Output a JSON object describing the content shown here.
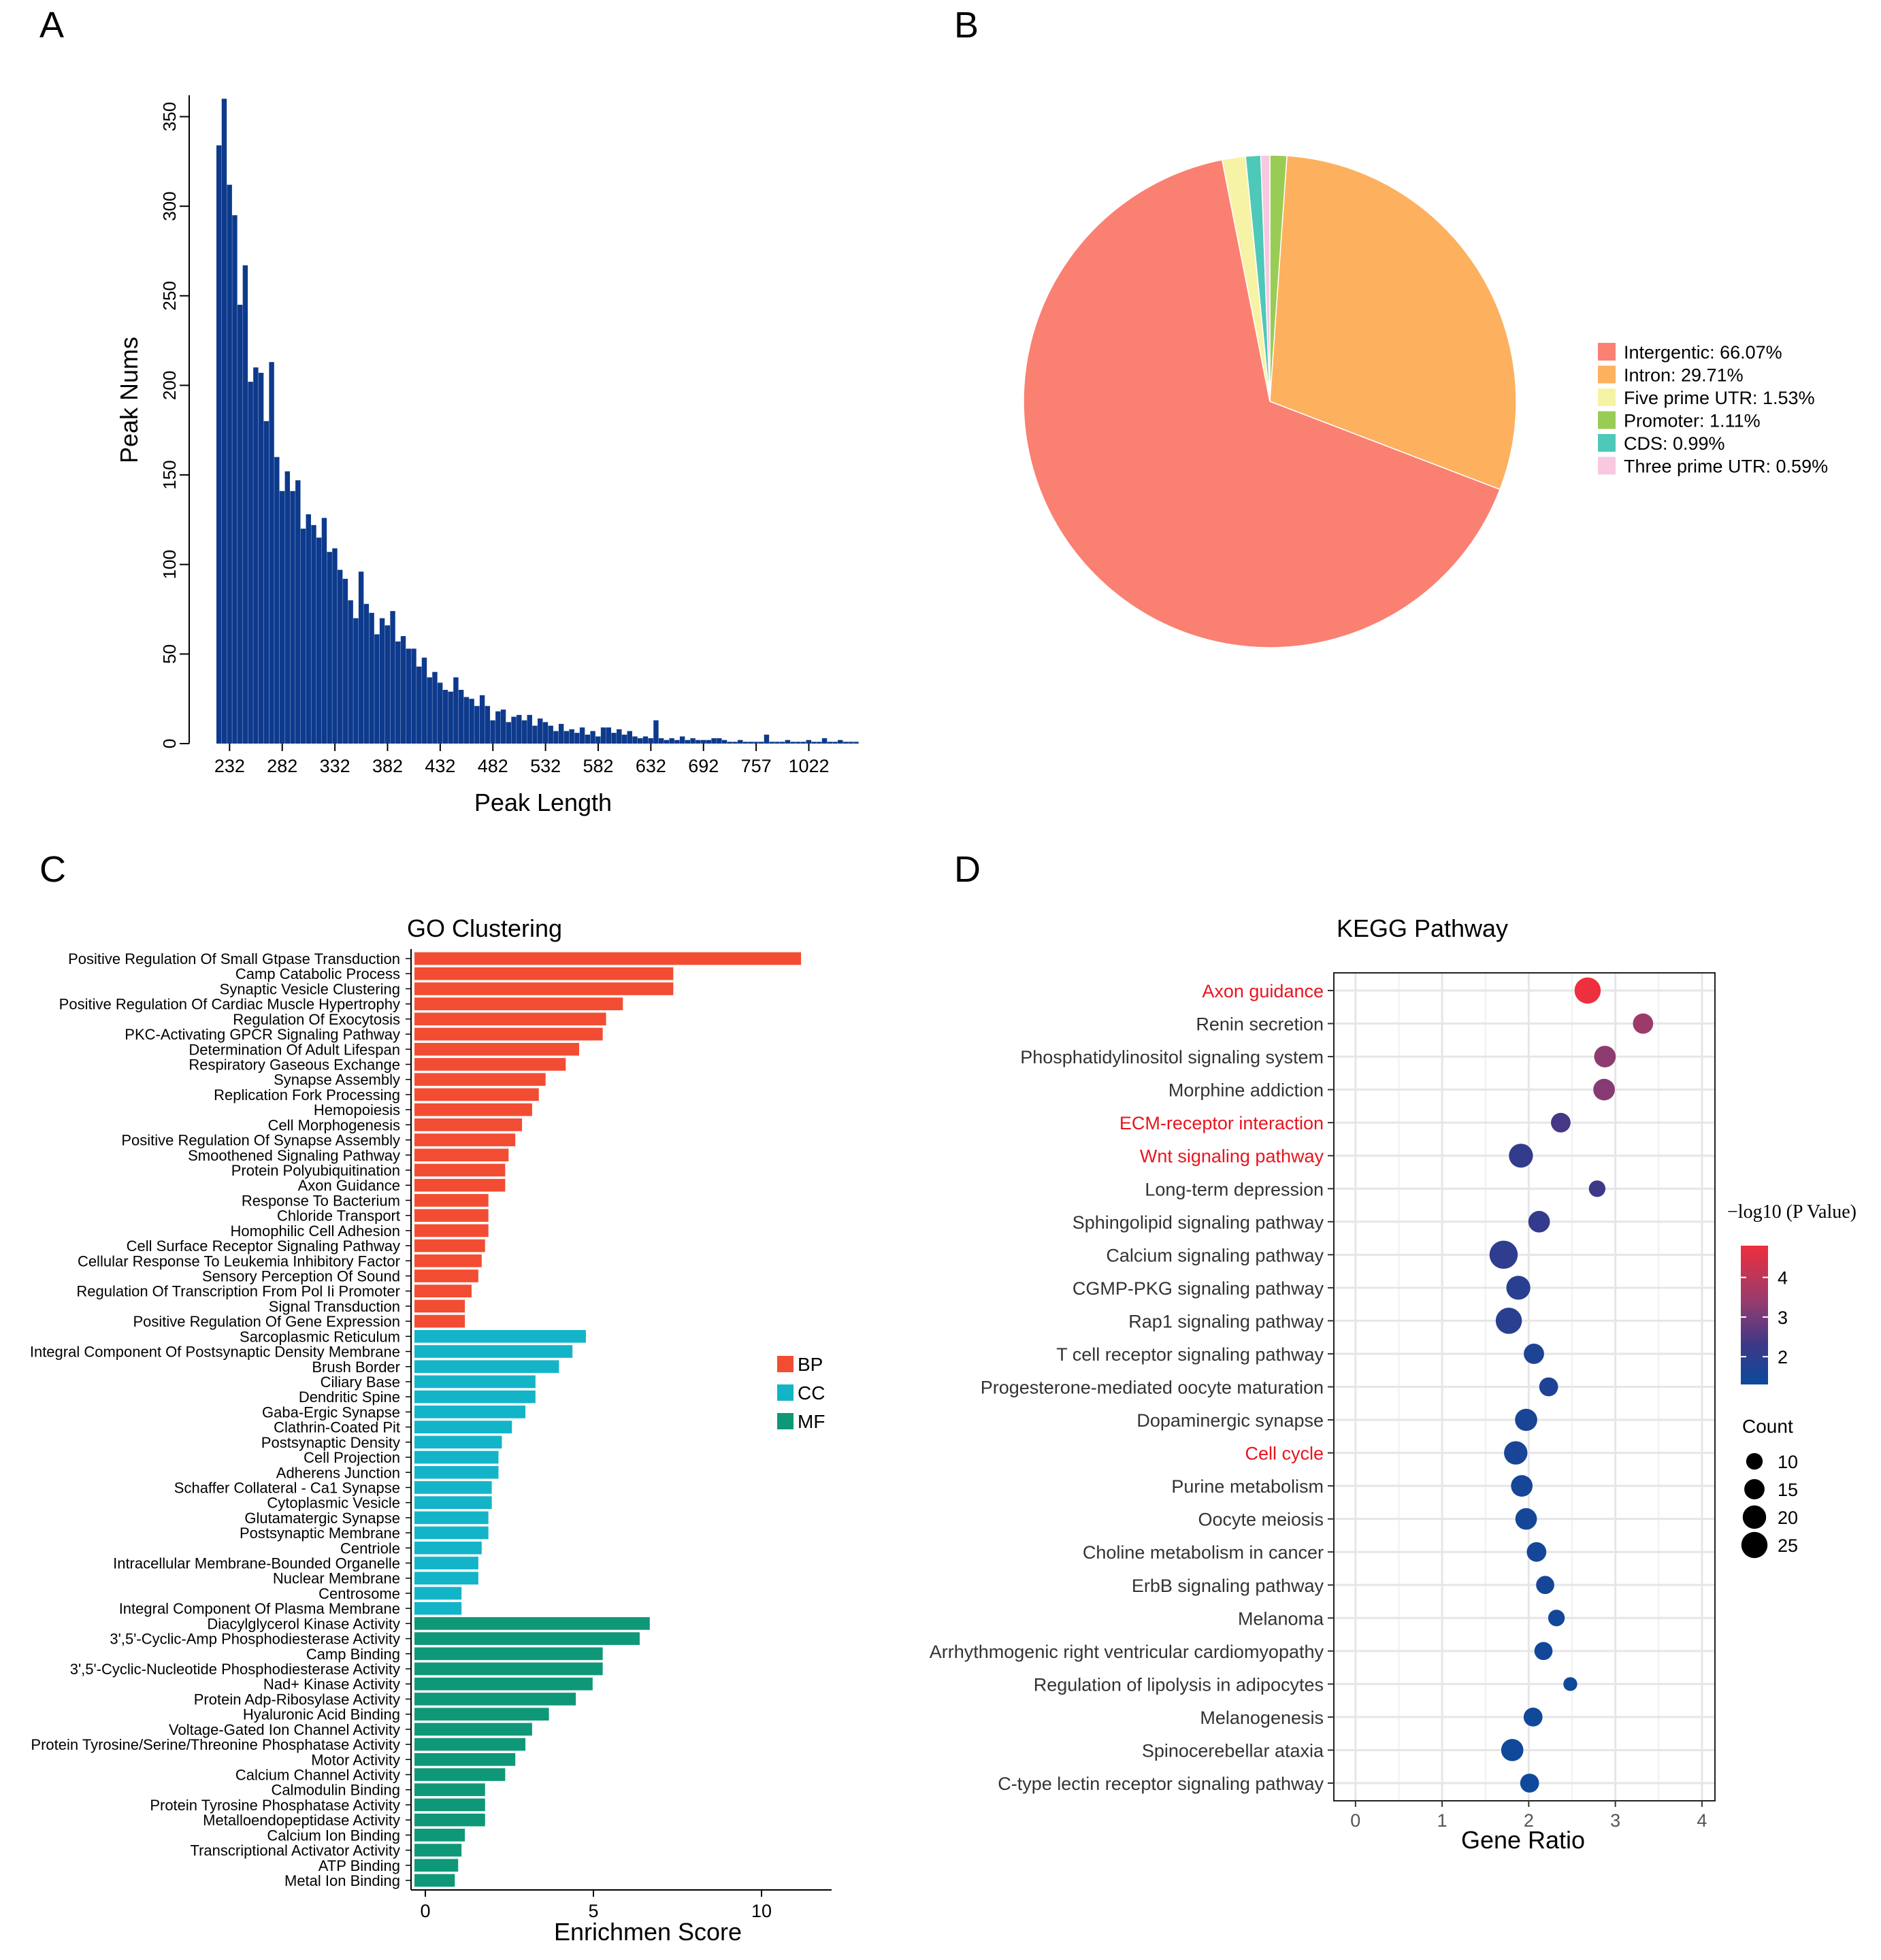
{
  "chart_data": [
    {
      "panel": "A",
      "type": "bar",
      "title": "",
      "xlabel": "Peak Length",
      "ylabel": "Peak Nums",
      "ylim": [
        0,
        365
      ],
      "yticks": [
        "0",
        "50",
        "100",
        "150",
        "200",
        "250",
        "300",
        "350"
      ],
      "xtick_labels": [
        "232",
        "282",
        "332",
        "382",
        "432",
        "482",
        "532",
        "582",
        "632",
        "692",
        "757",
        "1022"
      ],
      "xtick_bins": [
        2,
        12,
        22,
        32,
        42,
        52,
        62,
        72,
        82,
        92,
        102,
        112
      ],
      "color": "#0d3a8c",
      "values": [
        334,
        360,
        312,
        295,
        245,
        267,
        202,
        210,
        207,
        180,
        213,
        160,
        141,
        152,
        141,
        147,
        120,
        128,
        122,
        115,
        126,
        107,
        109,
        97,
        92,
        80,
        70,
        96,
        78,
        73,
        61,
        70,
        66,
        74,
        57,
        60,
        53,
        53,
        43,
        48,
        37,
        40,
        34,
        30,
        29,
        37,
        30,
        26,
        25,
        21,
        27,
        21,
        13,
        18,
        19,
        12,
        15,
        16,
        13,
        16,
        10,
        14,
        12,
        10,
        7,
        11,
        7,
        8,
        6,
        9,
        5,
        7,
        4,
        9,
        9,
        6,
        8,
        5,
        7,
        4,
        3,
        4,
        3,
        13,
        3,
        2,
        3,
        2,
        4,
        2,
        3,
        2,
        2,
        2,
        3,
        3,
        2,
        1,
        1,
        2,
        1,
        1,
        1,
        1,
        5,
        1,
        1,
        1,
        2,
        1,
        1,
        1,
        2,
        1,
        1,
        3,
        1,
        1,
        2,
        1,
        1,
        1
      ]
    },
    {
      "panel": "B",
      "type": "pie",
      "title": "",
      "slices": [
        {
          "label": "Intergentic: 66.07%",
          "name": "Intergentic",
          "value": 66.07,
          "color": "#fa8072"
        },
        {
          "label": "Intron: 29.71%",
          "name": "Intron",
          "value": 29.71,
          "color": "#fdb05e"
        },
        {
          "label": "Five prime UTR: 1.53%",
          "name": "Five prime UTR",
          "value": 1.53,
          "color": "#f7f3a6"
        },
        {
          "label": "Promoter: 1.11%",
          "name": "Promoter",
          "value": 1.11,
          "color": "#99cc55"
        },
        {
          "label": "CDS: 0.99%",
          "name": "CDS",
          "value": 0.99,
          "color": "#4ec8b8"
        },
        {
          "label": "Three prime UTR: 0.59%",
          "name": "Three prime UTR",
          "value": 0.59,
          "color": "#f7c8e0"
        }
      ],
      "slice_order_clockwise_from_top": [
        "Promoter",
        "Intron",
        "Intergentic",
        "Five prime UTR",
        "CDS",
        "Three prime UTR"
      ]
    },
    {
      "panel": "C",
      "type": "bar",
      "orientation": "horizontal",
      "title": "GO Clustering",
      "xlabel": "Enrichmen Score",
      "xlim": [
        -0.6,
        12
      ],
      "xticks": [
        "0",
        "5",
        "10"
      ],
      "legend": [
        {
          "label": "BP",
          "color": "#f24d33"
        },
        {
          "label": "CC",
          "color": "#14b4c8"
        },
        {
          "label": "MF",
          "color": "#0e9878"
        }
      ],
      "categories": [
        "Positive Regulation Of Small Gtpase Transduction",
        "Camp Catabolic Process",
        "Synaptic Vesicle Clustering",
        "Positive Regulation Of Cardiac Muscle Hypertrophy",
        "Regulation Of Exocytosis",
        "PKC-Activating GPCR Signaling Pathway",
        "Determination Of Adult Lifespan",
        "Respiratory Gaseous Exchange",
        "Synapse Assembly",
        "Replication Fork Processing",
        "Hemopoiesis",
        "Cell Morphogenesis",
        "Positive Regulation Of Synapse Assembly",
        "Smoothened Signaling Pathway",
        "Protein Polyubiquitination",
        "Axon Guidance",
        "Response To Bacterium",
        "Chloride Transport",
        "Homophilic Cell Adhesion",
        "Cell Surface Receptor Signaling Pathway",
        "Cellular Response To Leukemia Inhibitory Factor",
        "Sensory Perception Of Sound",
        "Regulation Of Transcription From Pol Ii Promoter",
        "Signal Transduction",
        "Positive Regulation Of Gene Expression",
        "Sarcoplasmic Reticulum",
        "Integral Component Of Postsynaptic Density Membrane",
        "Brush Border",
        "Ciliary Base",
        "Dendritic Spine",
        "Gaba-Ergic Synapse",
        "Clathrin-Coated Pit",
        "Postsynaptic Density",
        "Cell Projection",
        "Adherens Junction",
        "Schaffer Collateral - Ca1 Synapse",
        "Cytoplasmic Vesicle",
        "Glutamatergic Synapse",
        "Postsynaptic Membrane",
        "Centriole",
        "Intracellular Membrane-Bounded Organelle",
        "Nuclear Membrane",
        "Centrosome",
        "Integral Component Of Plasma Membrane",
        "Diacylglycerol Kinase Activity",
        "3',5'-Cyclic-Amp Phosphodiesterase Activity",
        "Camp Binding",
        "3',5'-Cyclic-Nucleotide Phosphodiesterase Activity",
        "Nad+ Kinase Activity",
        "Protein Adp-Ribosylase Activity",
        "Hyaluronic Acid Binding",
        "Voltage-Gated Ion Channel Activity",
        "Protein Tyrosine/Serine/Threonine Phosphatase Activity",
        "Motor Activity",
        "Calcium Channel Activity",
        "Calmodulin Binding",
        "Protein Tyrosine Phosphatase Activity",
        "Metalloendopeptidase Activity",
        "Calcium Ion Binding",
        "Transcriptional Activator Activity",
        "ATP Binding",
        "Metal Ion Binding"
      ],
      "groups": [
        "BP",
        "BP",
        "BP",
        "BP",
        "BP",
        "BP",
        "BP",
        "BP",
        "BP",
        "BP",
        "BP",
        "BP",
        "BP",
        "BP",
        "BP",
        "BP",
        "BP",
        "BP",
        "BP",
        "BP",
        "BP",
        "BP",
        "BP",
        "BP",
        "BP",
        "CC",
        "CC",
        "CC",
        "CC",
        "CC",
        "CC",
        "CC",
        "CC",
        "CC",
        "CC",
        "CC",
        "CC",
        "CC",
        "CC",
        "CC",
        "CC",
        "CC",
        "CC",
        "CC",
        "MF",
        "MF",
        "MF",
        "MF",
        "MF",
        "MF",
        "MF",
        "MF",
        "MF",
        "MF",
        "MF",
        "MF",
        "MF",
        "MF",
        "MF",
        "MF",
        "MF",
        "MF"
      ],
      "values": [
        11.5,
        7.7,
        7.7,
        6.2,
        5.7,
        5.6,
        4.9,
        4.5,
        3.9,
        3.7,
        3.5,
        3.2,
        3.0,
        2.8,
        2.7,
        2.7,
        2.2,
        2.2,
        2.2,
        2.1,
        2.0,
        1.9,
        1.7,
        1.5,
        1.5,
        5.1,
        4.7,
        4.3,
        3.6,
        3.6,
        3.3,
        2.9,
        2.6,
        2.5,
        2.5,
        2.3,
        2.3,
        2.2,
        2.2,
        2.0,
        1.9,
        1.9,
        1.4,
        1.4,
        7.0,
        6.7,
        5.6,
        5.6,
        5.3,
        4.8,
        4.0,
        3.5,
        3.3,
        3.0,
        2.7,
        2.1,
        2.1,
        2.1,
        1.5,
        1.4,
        1.3,
        1.2
      ]
    },
    {
      "panel": "D",
      "type": "scatter",
      "title": "KEGG Pathway",
      "xlabel": "Gene Ratio",
      "xlim": [
        -0.25,
        4.15
      ],
      "xticks": [
        "0",
        "1",
        "2",
        "3",
        "4"
      ],
      "color_legend_title": "−log10 (P Value)",
      "color_ticks": [
        "4",
        "3",
        "2"
      ],
      "color_range": [
        1.3,
        4.8
      ],
      "size_legend_title": "Count",
      "size_legend": [
        "10",
        "15",
        "20",
        "25"
      ],
      "highlight_color": "#e8141e",
      "pathways": [
        {
          "name": "Axon guidance",
          "highlight": true,
          "x": 2.68,
          "count": 25,
          "logp": 4.8
        },
        {
          "name": "Renin secretion",
          "highlight": false,
          "x": 3.32,
          "count": 15,
          "logp": 3.5
        },
        {
          "name": "Phosphatidylinositol signaling system",
          "highlight": false,
          "x": 2.88,
          "count": 17,
          "logp": 3.3
        },
        {
          "name": "Morphine addiction",
          "highlight": false,
          "x": 2.87,
          "count": 17,
          "logp": 3.2
        },
        {
          "name": "ECM-receptor interaction",
          "highlight": true,
          "x": 2.37,
          "count": 14,
          "logp": 2.4
        },
        {
          "name": "Wnt signaling pathway",
          "highlight": true,
          "x": 1.91,
          "count": 21,
          "logp": 2.1
        },
        {
          "name": "Long-term depression",
          "highlight": false,
          "x": 2.79,
          "count": 10,
          "logp": 2.3
        },
        {
          "name": "Sphingolipid signaling pathway",
          "highlight": false,
          "x": 2.12,
          "count": 17,
          "logp": 2.1
        },
        {
          "name": "Calcium signaling pathway",
          "highlight": false,
          "x": 1.71,
          "count": 29,
          "logp": 2.0
        },
        {
          "name": "CGMP-PKG signaling pathway",
          "highlight": false,
          "x": 1.88,
          "count": 21,
          "logp": 1.9
        },
        {
          "name": "Rap1 signaling pathway",
          "highlight": false,
          "x": 1.77,
          "count": 25,
          "logp": 1.9
        },
        {
          "name": "T cell receptor signaling pathway",
          "highlight": false,
          "x": 2.06,
          "count": 15,
          "logp": 1.7
        },
        {
          "name": "Progesterone-mediated oocyte maturation",
          "highlight": false,
          "x": 2.23,
          "count": 13,
          "logp": 1.7
        },
        {
          "name": "Dopaminergic synapse",
          "highlight": false,
          "x": 1.97,
          "count": 18,
          "logp": 1.6
        },
        {
          "name": "Cell cycle",
          "highlight": true,
          "x": 1.85,
          "count": 20,
          "logp": 1.6
        },
        {
          "name": "Purine metabolism",
          "highlight": false,
          "x": 1.92,
          "count": 17,
          "logp": 1.5
        },
        {
          "name": "Oocyte meiosis",
          "highlight": false,
          "x": 1.97,
          "count": 17,
          "logp": 1.5
        },
        {
          "name": "Choline metabolism in cancer",
          "highlight": false,
          "x": 2.09,
          "count": 14,
          "logp": 1.5
        },
        {
          "name": "ErbB signaling pathway",
          "highlight": false,
          "x": 2.19,
          "count": 12,
          "logp": 1.5
        },
        {
          "name": "Melanoma",
          "highlight": false,
          "x": 2.32,
          "count": 10,
          "logp": 1.45
        },
        {
          "name": "Arrhythmogenic right ventricular cardiomyopathy",
          "highlight": false,
          "x": 2.17,
          "count": 12,
          "logp": 1.45
        },
        {
          "name": "Regulation of lipolysis in adipocytes",
          "highlight": false,
          "x": 2.48,
          "count": 7,
          "logp": 1.4
        },
        {
          "name": "Melanogenesis",
          "highlight": false,
          "x": 2.05,
          "count": 13,
          "logp": 1.4
        },
        {
          "name": "Spinocerebellar ataxia",
          "highlight": false,
          "x": 1.81,
          "count": 18,
          "logp": 1.4
        },
        {
          "name": "C-type lectin receptor signaling pathway",
          "highlight": false,
          "x": 2.01,
          "count": 13,
          "logp": 1.35
        }
      ]
    }
  ],
  "panel_labels": {
    "a": "A",
    "b": "B",
    "c": "C",
    "d": "D"
  }
}
